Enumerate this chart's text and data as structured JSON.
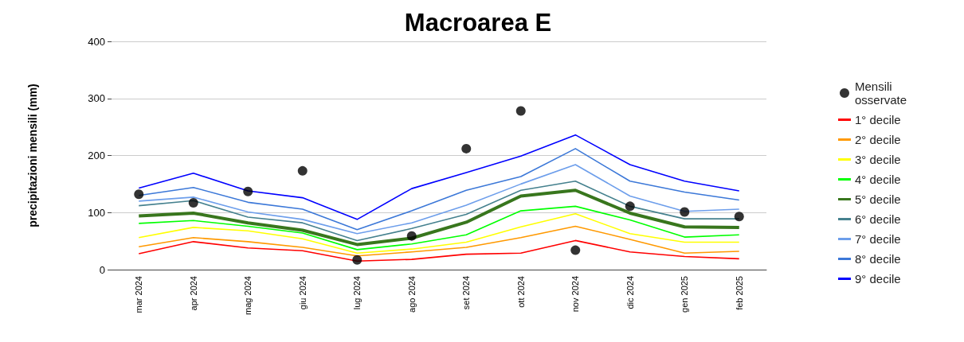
{
  "chart_data": {
    "type": "line",
    "title": "Macroarea E",
    "ylabel": "precipitazioni mensili (mm)",
    "categories": [
      "mar 2024",
      "apr 2024",
      "mag 2024",
      "giu 2024",
      "lug 2024",
      "ago 2024",
      "set 2024",
      "ott 2024",
      "nov 2024",
      "dic 2024",
      "gen 2025",
      "feb 2025"
    ],
    "ylim": [
      0,
      400
    ],
    "yticks": [
      0,
      100,
      200,
      300,
      400
    ],
    "grid": "y",
    "legend": "right",
    "marker": "none",
    "line_style": "solid",
    "series": [
      {
        "name": "Mensili osservate",
        "type": "scatter",
        "marker": "circle",
        "color": "#000000",
        "values": [
          132,
          117,
          137,
          173,
          17,
          59,
          212,
          278,
          34,
          111,
          101,
          93
        ]
      },
      {
        "name": "1° decile",
        "color": "#ff0000",
        "values": [
          28,
          49,
          38,
          33,
          15,
          18,
          27,
          29,
          51,
          31,
          23,
          19
        ]
      },
      {
        "name": "2° decile",
        "color": "#ff9900",
        "values": [
          40,
          56,
          49,
          39,
          24,
          31,
          39,
          56,
          76,
          53,
          29,
          32
        ]
      },
      {
        "name": "3° decile",
        "color": "#ffff00",
        "values": [
          56,
          74,
          68,
          54,
          29,
          36,
          48,
          75,
          98,
          63,
          48,
          48
        ]
      },
      {
        "name": "4° decile",
        "color": "#00ff00",
        "values": [
          81,
          86,
          76,
          64,
          35,
          45,
          61,
          103,
          111,
          87,
          57,
          61
        ]
      },
      {
        "name": "5° decile",
        "color": "#38761d",
        "values": [
          94,
          99,
          82,
          69,
          44,
          55,
          83,
          129,
          139,
          99,
          75,
          74
        ]
      },
      {
        "name": "6° decile",
        "color": "#45818e",
        "values": [
          112,
          121,
          92,
          82,
          51,
          72,
          97,
          139,
          155,
          111,
          89,
          89
        ]
      },
      {
        "name": "7° decile",
        "color": "#6d9eeb",
        "values": [
          120,
          127,
          101,
          88,
          63,
          82,
          113,
          150,
          184,
          129,
          102,
          106
        ]
      },
      {
        "name": "8° decile",
        "color": "#3c78d8",
        "values": [
          130,
          144,
          118,
          106,
          70,
          103,
          139,
          163,
          212,
          155,
          136,
          122
        ]
      },
      {
        "name": "9° decile",
        "color": "#0000ff",
        "values": [
          143,
          169,
          138,
          126,
          88,
          142,
          170,
          199,
          236,
          184,
          155,
          138
        ]
      }
    ]
  }
}
